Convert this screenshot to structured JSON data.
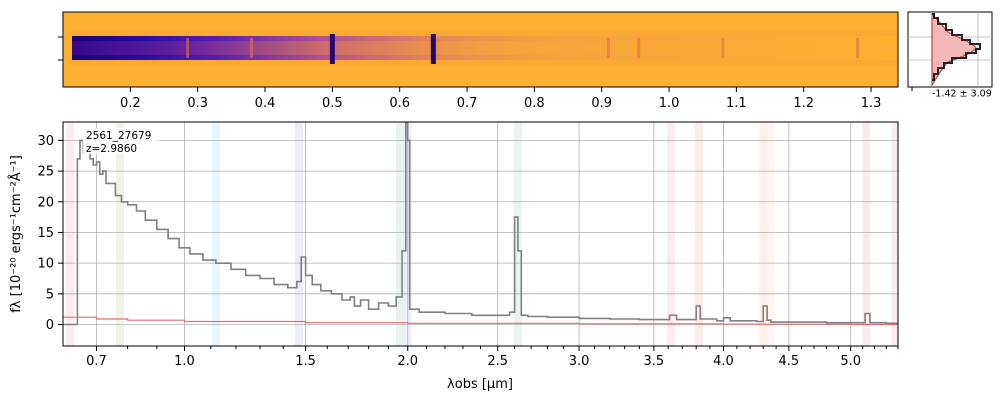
{
  "chart_data": {
    "type": "line",
    "object_id": "2561_27679",
    "redshift_label": "z=2.9860",
    "xlabel": "λobs [μm]",
    "ylabel": "fλ [10⁻²⁰ ergs⁻¹cm⁻²Å⁻¹]",
    "xlim": [
      0.6,
      5.4
    ],
    "ylim": [
      -3.5,
      33
    ],
    "x_scale": "sqrt",
    "x_ticks": [
      0.7,
      1.0,
      1.5,
      2.0,
      2.5,
      3.0,
      3.5,
      4.0,
      4.5,
      5.0
    ],
    "x_tick_labels": [
      "0.7",
      "1.0",
      "1.5",
      "2.0",
      "2.5",
      "3.0",
      "3.5",
      "4.0",
      "4.5",
      "5.0"
    ],
    "y_ticks": [
      0,
      5,
      10,
      15,
      20,
      25,
      30
    ],
    "y_tick_labels": [
      "0",
      "5",
      "10",
      "15",
      "20",
      "25",
      "30"
    ],
    "grid": true,
    "series": [
      {
        "color": "#808080",
        "x": [
          0.6,
          0.64,
          0.642,
          0.65,
          0.66,
          0.67,
          0.68,
          0.69,
          0.7,
          0.71,
          0.72,
          0.73,
          0.74,
          0.76,
          0.78,
          0.8,
          0.83,
          0.86,
          0.9,
          0.94,
          0.98,
          1.02,
          1.07,
          1.12,
          1.18,
          1.24,
          1.3,
          1.36,
          1.42,
          1.46,
          1.48,
          1.5,
          1.53,
          1.57,
          1.62,
          1.67,
          1.71,
          1.73,
          1.76,
          1.8,
          1.85,
          1.9,
          1.94,
          1.97,
          1.99,
          2.0,
          2.01,
          2.03,
          2.06,
          2.1,
          2.2,
          2.35,
          2.5,
          2.57,
          2.6,
          2.62,
          2.64,
          2.68,
          2.8,
          3.0,
          3.2,
          3.4,
          3.58,
          3.61,
          3.66,
          3.77,
          3.8,
          3.83,
          3.95,
          4.0,
          4.05,
          4.25,
          4.3,
          4.33,
          4.36,
          4.5,
          4.8,
          5.08,
          5.12,
          5.16,
          5.3,
          5.4
        ],
        "y": [
          0,
          0,
          27,
          30,
          28,
          29.5,
          27,
          26,
          26.5,
          24.5,
          25,
          23,
          23,
          21,
          20,
          19.5,
          18.5,
          17,
          15.5,
          14,
          12.5,
          11.5,
          10.5,
          10,
          9,
          8,
          7.5,
          6.5,
          6,
          7,
          11,
          8,
          6.5,
          5.5,
          5,
          4,
          4.5,
          3,
          4,
          2.5,
          3.5,
          3,
          4.5,
          12,
          33,
          30,
          2.5,
          2.5,
          2,
          2,
          1.8,
          1.5,
          1.5,
          2,
          17.5,
          12,
          1.5,
          1.3,
          1.2,
          1.0,
          0.9,
          0.8,
          0.8,
          1.5,
          0.8,
          0.8,
          3,
          0.9,
          0.6,
          1.1,
          0.6,
          0.5,
          3,
          0.7,
          0.4,
          0.4,
          0.3,
          0.3,
          1.8,
          0.3,
          0.2,
          0.1
        ]
      },
      {
        "color": "#e07070",
        "x": [
          0.6,
          0.7,
          0.8,
          1.0,
          1.5,
          2.0,
          3.0,
          4.0,
          5.0,
          5.4
        ],
        "y": [
          1.2,
          0.9,
          0.7,
          0.5,
          0.3,
          0.2,
          0.1,
          0.05,
          0.0,
          0.0
        ]
      }
    ],
    "emission_bands": [
      {
        "x": 0.62,
        "color": "#cc4444"
      },
      {
        "x": 0.775,
        "color": "#6b8e23"
      },
      {
        "x": 1.12,
        "color": "#1e90ff"
      },
      {
        "x": 1.47,
        "color": "#5050a0"
      },
      {
        "x": 1.96,
        "color": "#2e8b57"
      },
      {
        "x": 2.0,
        "color": "#7070b0"
      },
      {
        "x": 2.62,
        "color": "#2e8b57"
      },
      {
        "x": 3.62,
        "color": "#cc4444"
      },
      {
        "x": 3.82,
        "color": "#cc4444"
      },
      {
        "x": 4.3,
        "color": "#ff6347"
      },
      {
        "x": 4.36,
        "color": "#ff9999"
      },
      {
        "x": 5.13,
        "color": "#cc4444"
      },
      {
        "x": 5.38,
        "color": "#cc4444"
      }
    ],
    "top_axis_ticks": [
      0.2,
      0.3,
      0.4,
      0.5,
      0.6,
      0.7,
      0.8,
      0.9,
      1.0,
      1.1,
      1.2,
      1.3
    ],
    "top_axis_tick_labels": [
      "0.2",
      "0.3",
      "0.4",
      "0.5",
      "0.6",
      "0.7",
      "0.8",
      "0.9",
      "1.0",
      "1.1",
      "1.2",
      "1.3"
    ],
    "top_axis_range": [
      0.1,
      1.34
    ],
    "spectrum_2d_lines": [
      0.5,
      0.65,
      0.285,
      0.38,
      0.91,
      0.955,
      1.08,
      1.28
    ],
    "inset_label": "-1.42 ± 3.09"
  }
}
